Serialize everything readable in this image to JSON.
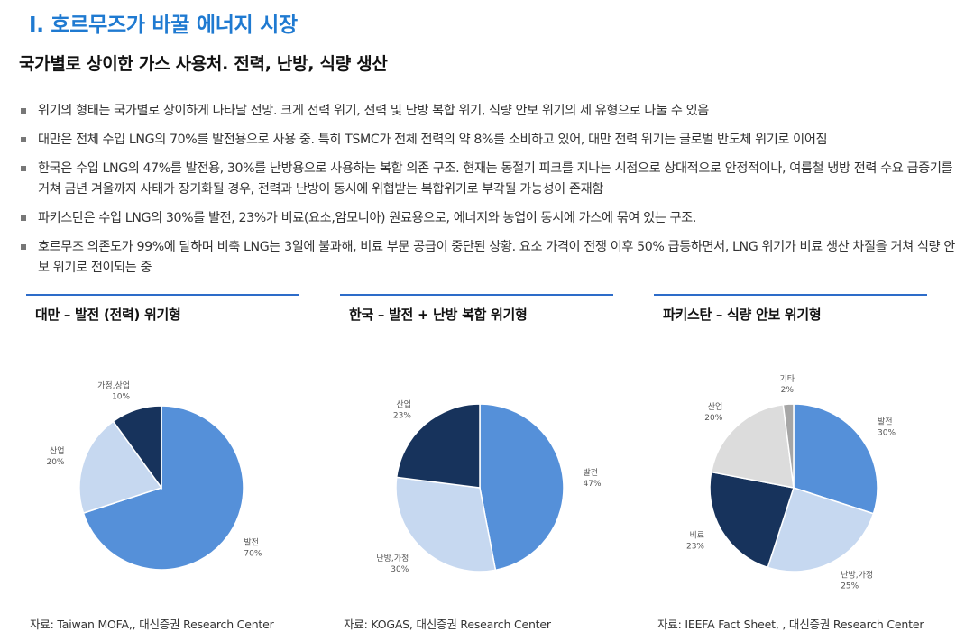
{
  "header": {
    "section_title": "Ⅰ. 호르무즈가 바꿀 에너지 시장",
    "sub_title": "국가별로 상이한 가스 사용처. 전력, 난방, 식량 생산"
  },
  "bullets": [
    "위기의 형태는 국가별로 상이하게 나타날 전망. 크게 전력 위기, 전력 및 난방 복합 위기, 식량 안보 위기의 세 유형으로 나눌 수 있음",
    "대만은 전체 수입 LNG의 70%를 발전용으로 사용 중. 특히 TSMC가 전체 전력의 약 8%를 소비하고 있어, 대만 전력 위기는 글로벌 반도체 위기로 이어짐",
    "한국은 수입 LNG의 47%를 발전용, 30%를 난방용으로 사용하는 복합 의존 구조. 현재는 동절기 피크를 지나는 시점으로 상대적으로 안정적이나, 여름철 냉방 전력 수요 급증기를 거쳐 금년 겨울까지 사태가 장기화될 경우, 전력과 난방이 동시에 위협받는 복합위기로 부각될 가능성이 존재함",
    "파키스탄은 수입 LNG의 30%를 발전, 23%가 비료(요소,암모니아) 원료용으로, 에너지와 농업이 동시에 가스에 묶여 있는 구조.",
    "호르무즈 의존도가 99%에 달하며 비축 LNG는 3일에 불과해, 비료 부문 공급이 중단된 상황. 요소 가격이 전쟁 이후 50% 급등하면서, LNG 위기가 비료 생산 차질을 거쳐 식량 안보 위기로 전이되는 중"
  ],
  "chart_data": [
    {
      "type": "pie",
      "title": "대만 – 발전 (전력) 위기형",
      "slices": [
        {
          "name": "발전",
          "value": 70,
          "label": "70%",
          "color": "#5590d9"
        },
        {
          "name": "산업",
          "value": 20,
          "label": "20%",
          "color": "#c6d8f0"
        },
        {
          "name": "가정,상업",
          "value": 10,
          "label": "10%",
          "color": "#17335c"
        }
      ],
      "source": "자료: Taiwan MOFA,, 대신증권 Research Center"
    },
    {
      "type": "pie",
      "title": "한국 – 발전 + 난방 복합 위기형",
      "slices": [
        {
          "name": "발전",
          "value": 47,
          "label": "47%",
          "color": "#5590d9"
        },
        {
          "name": "난방,가정",
          "value": 30,
          "label": "30%",
          "color": "#c6d8f0"
        },
        {
          "name": "산업",
          "value": 23,
          "label": "23%",
          "color": "#17335c"
        }
      ],
      "source": "자료: KOGAS, 대신증권 Research Center"
    },
    {
      "type": "pie",
      "title": "파키스탄 – 식량 안보 위기형",
      "slices": [
        {
          "name": "발전",
          "value": 30,
          "label": "30%",
          "color": "#5590d9"
        },
        {
          "name": "난방,가정",
          "value": 25,
          "label": "25%",
          "color": "#c6d8f0"
        },
        {
          "name": "비료",
          "value": 23,
          "label": "23%",
          "color": "#17335c"
        },
        {
          "name": "산업",
          "value": 20,
          "label": "20%",
          "color": "#dcdcdc"
        },
        {
          "name": "기타",
          "value": 2,
          "label": "2%",
          "color": "#a6a6a6"
        }
      ],
      "source": "자료: IEEFA Fact Sheet, , 대신증권 Research Center"
    }
  ]
}
